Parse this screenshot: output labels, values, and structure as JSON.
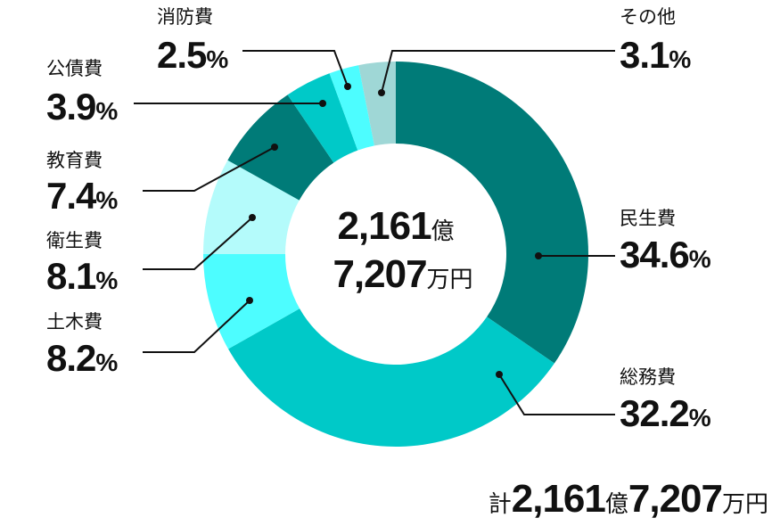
{
  "chart_data": {
    "type": "donut",
    "categories": [
      "民生費",
      "総務費",
      "土木費",
      "衛生費",
      "教育費",
      "公債費",
      "消防費",
      "その他"
    ],
    "values": [
      34.6,
      32.2,
      8.2,
      8.1,
      7.4,
      3.9,
      2.5,
      3.1
    ],
    "percent_unit": "%",
    "colors": [
      "#007b78",
      "#00c9c8",
      "#4dfdff",
      "#b4fbfb",
      "#007b78",
      "#00c9c8",
      "#4dfdff",
      "#9fd7d6"
    ],
    "center": {
      "oku": "2,161",
      "oku_unit": "億",
      "man": "7,207",
      "man_unit": "万円"
    },
    "total_prefix": "計"
  }
}
